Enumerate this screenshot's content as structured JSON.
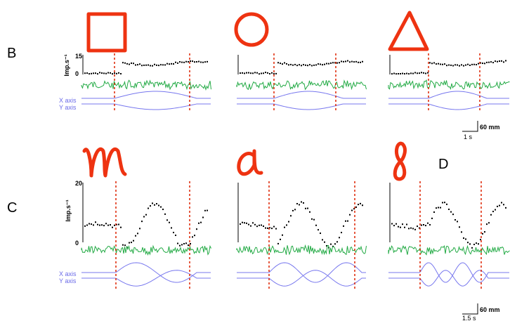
{
  "panels": [
    {
      "label": "B"
    },
    {
      "label": "C"
    },
    {
      "label": "D"
    }
  ],
  "rows": [
    {
      "rate_label": "Imp.s⁻¹",
      "rate_max": "15",
      "rate_min": "0",
      "x_trace": "X axis",
      "y_trace": "Y axis",
      "scale_distance": "60 mm",
      "scale_time": "1 s"
    },
    {
      "rate_label": "Imp.s⁻¹",
      "rate_max": "20",
      "rate_min": "0",
      "x_trace": "X axis",
      "y_trace": "Y axis",
      "scale_distance": "60 mm",
      "scale_time": "1.5 s"
    }
  ]
}
